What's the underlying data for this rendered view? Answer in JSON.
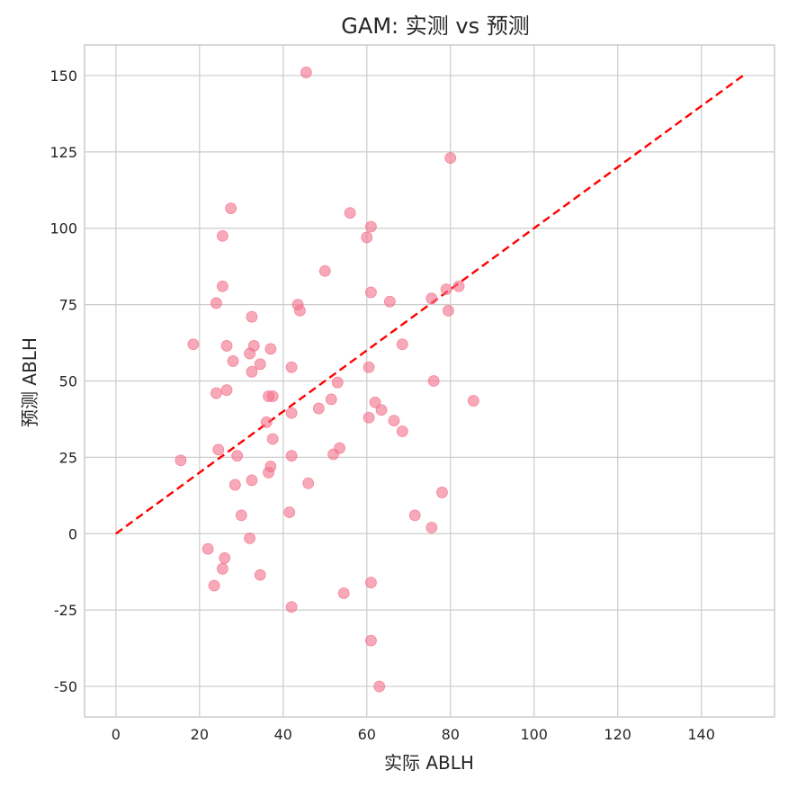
{
  "chart_data": {
    "type": "scatter",
    "title": "GAM: 实测 vs 预测",
    "xlabel": "实际 ABLH",
    "ylabel": "预测 ABLH",
    "xlim": [
      -7.5,
      157.5
    ],
    "ylim": [
      -60,
      160
    ],
    "xticks": [
      0,
      20,
      40,
      60,
      80,
      100,
      120,
      140
    ],
    "yticks": [
      -50,
      -25,
      0,
      25,
      50,
      75,
      100,
      125,
      150
    ],
    "grid": true,
    "point_color": "#f4708a",
    "reference_line": {
      "style": "dashed",
      "color": "#ff0000",
      "from": [
        0,
        0
      ],
      "to": [
        150,
        150
      ]
    },
    "points": [
      [
        45.5,
        151
      ],
      [
        80,
        123
      ],
      [
        27.5,
        106.5
      ],
      [
        56,
        105
      ],
      [
        61,
        100.5
      ],
      [
        25.5,
        97.5
      ],
      [
        60,
        97
      ],
      [
        50,
        86
      ],
      [
        25.5,
        81
      ],
      [
        82,
        81
      ],
      [
        79,
        80
      ],
      [
        61,
        79
      ],
      [
        75.5,
        77
      ],
      [
        65.5,
        76
      ],
      [
        24,
        75.5
      ],
      [
        43.5,
        75
      ],
      [
        44,
        73
      ],
      [
        79.5,
        73
      ],
      [
        32.5,
        71
      ],
      [
        18.5,
        62
      ],
      [
        26.5,
        61.5
      ],
      [
        33,
        61.5
      ],
      [
        37,
        60.5
      ],
      [
        68.5,
        62
      ],
      [
        32,
        59
      ],
      [
        28,
        56.5
      ],
      [
        34.5,
        55.5
      ],
      [
        42,
        54.5
      ],
      [
        60.5,
        54.5
      ],
      [
        32.5,
        53
      ],
      [
        76,
        50
      ],
      [
        53,
        49.5
      ],
      [
        26.5,
        47
      ],
      [
        24,
        46
      ],
      [
        36.5,
        45
      ],
      [
        37.5,
        45
      ],
      [
        51.5,
        44
      ],
      [
        85.5,
        43.5
      ],
      [
        62,
        43
      ],
      [
        48.5,
        41
      ],
      [
        63.5,
        40.5
      ],
      [
        42,
        39.5
      ],
      [
        60.5,
        38
      ],
      [
        36,
        36.5
      ],
      [
        66.5,
        37
      ],
      [
        68.5,
        33.5
      ],
      [
        37.5,
        31
      ],
      [
        53.5,
        28
      ],
      [
        24.5,
        27.5
      ],
      [
        29,
        25.5
      ],
      [
        42,
        25.5
      ],
      [
        52,
        26
      ],
      [
        15.5,
        24
      ],
      [
        37,
        22
      ],
      [
        36.5,
        20
      ],
      [
        32.5,
        17.5
      ],
      [
        46,
        16.5
      ],
      [
        28.5,
        16
      ],
      [
        78,
        13.5
      ],
      [
        41.5,
        7
      ],
      [
        30,
        6
      ],
      [
        71.5,
        6
      ],
      [
        75.5,
        2
      ],
      [
        32,
        -1.5
      ],
      [
        22,
        -5
      ],
      [
        26,
        -8
      ],
      [
        25.5,
        -11.5
      ],
      [
        34.5,
        -13.5
      ],
      [
        61,
        -16
      ],
      [
        23.5,
        -17
      ],
      [
        54.5,
        -19.5
      ],
      [
        42,
        -24
      ],
      [
        61,
        -35
      ],
      [
        63,
        -50
      ]
    ]
  }
}
